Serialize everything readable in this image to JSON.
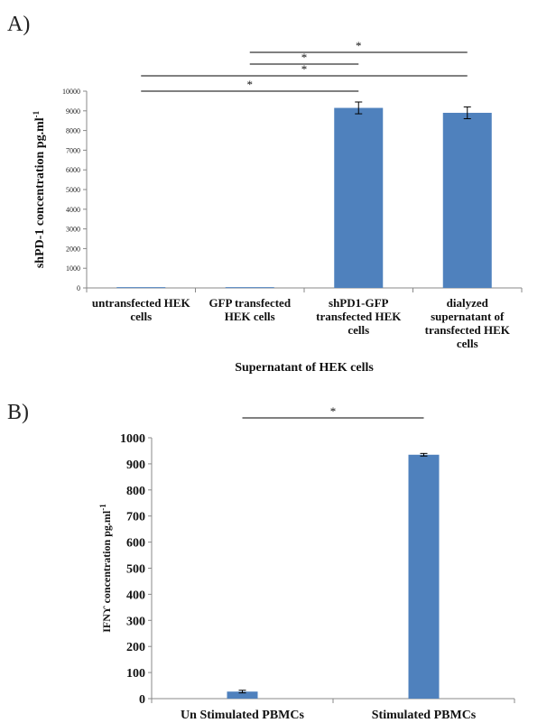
{
  "colors": {
    "bar": "#4f81bd",
    "axis": "#888888",
    "text": "#111111"
  },
  "chart_data": [
    {
      "panel_label": "A)",
      "type": "bar",
      "categories": [
        [
          "untransfected HEK",
          "cells"
        ],
        [
          "GFP transfected",
          "HEK cells"
        ],
        [
          "shPD1-GFP",
          "transfected HEK",
          "cells"
        ],
        [
          "dialyzed",
          "supernatant of",
          "transfected HEK",
          "cells"
        ]
      ],
      "values": [
        40,
        40,
        9150,
        8900
      ],
      "errors": [
        0,
        0,
        300,
        300
      ],
      "ylim": [
        0,
        10000
      ],
      "yticks": [
        "0",
        "1000",
        "2000",
        "3000",
        "4000",
        "5000",
        "6000",
        "7000",
        "8000",
        "9000",
        "10000"
      ],
      "ylabel": "shPD-1 concentration pg.ml",
      "ylabel_sup": "-1",
      "xlabel": "Supernatant of HEK cells",
      "significance": [
        {
          "from": 1,
          "to": 2,
          "label": "*"
        },
        {
          "from": 0,
          "to": 3,
          "label": "*"
        },
        {
          "from": 1,
          "to": 3,
          "label": "*"
        },
        {
          "from": 0,
          "to": 2,
          "label": "*"
        }
      ]
    },
    {
      "panel_label": "B)",
      "type": "bar",
      "categories": [
        [
          "Un Stimulated PBMCs"
        ],
        [
          "Stimulated PBMCs"
        ]
      ],
      "values": [
        27,
        935
      ],
      "errors": [
        5,
        5
      ],
      "ylim": [
        0,
        1000
      ],
      "yticks": [
        "0",
        "100",
        "200",
        "300",
        "400",
        "500",
        "600",
        "700",
        "800",
        "900",
        "1000"
      ],
      "ylabel": "IFNϒ concentration pg.ml",
      "ylabel_sup": "-1",
      "significance": [
        {
          "from": 0,
          "to": 1,
          "label": "*"
        }
      ]
    }
  ]
}
